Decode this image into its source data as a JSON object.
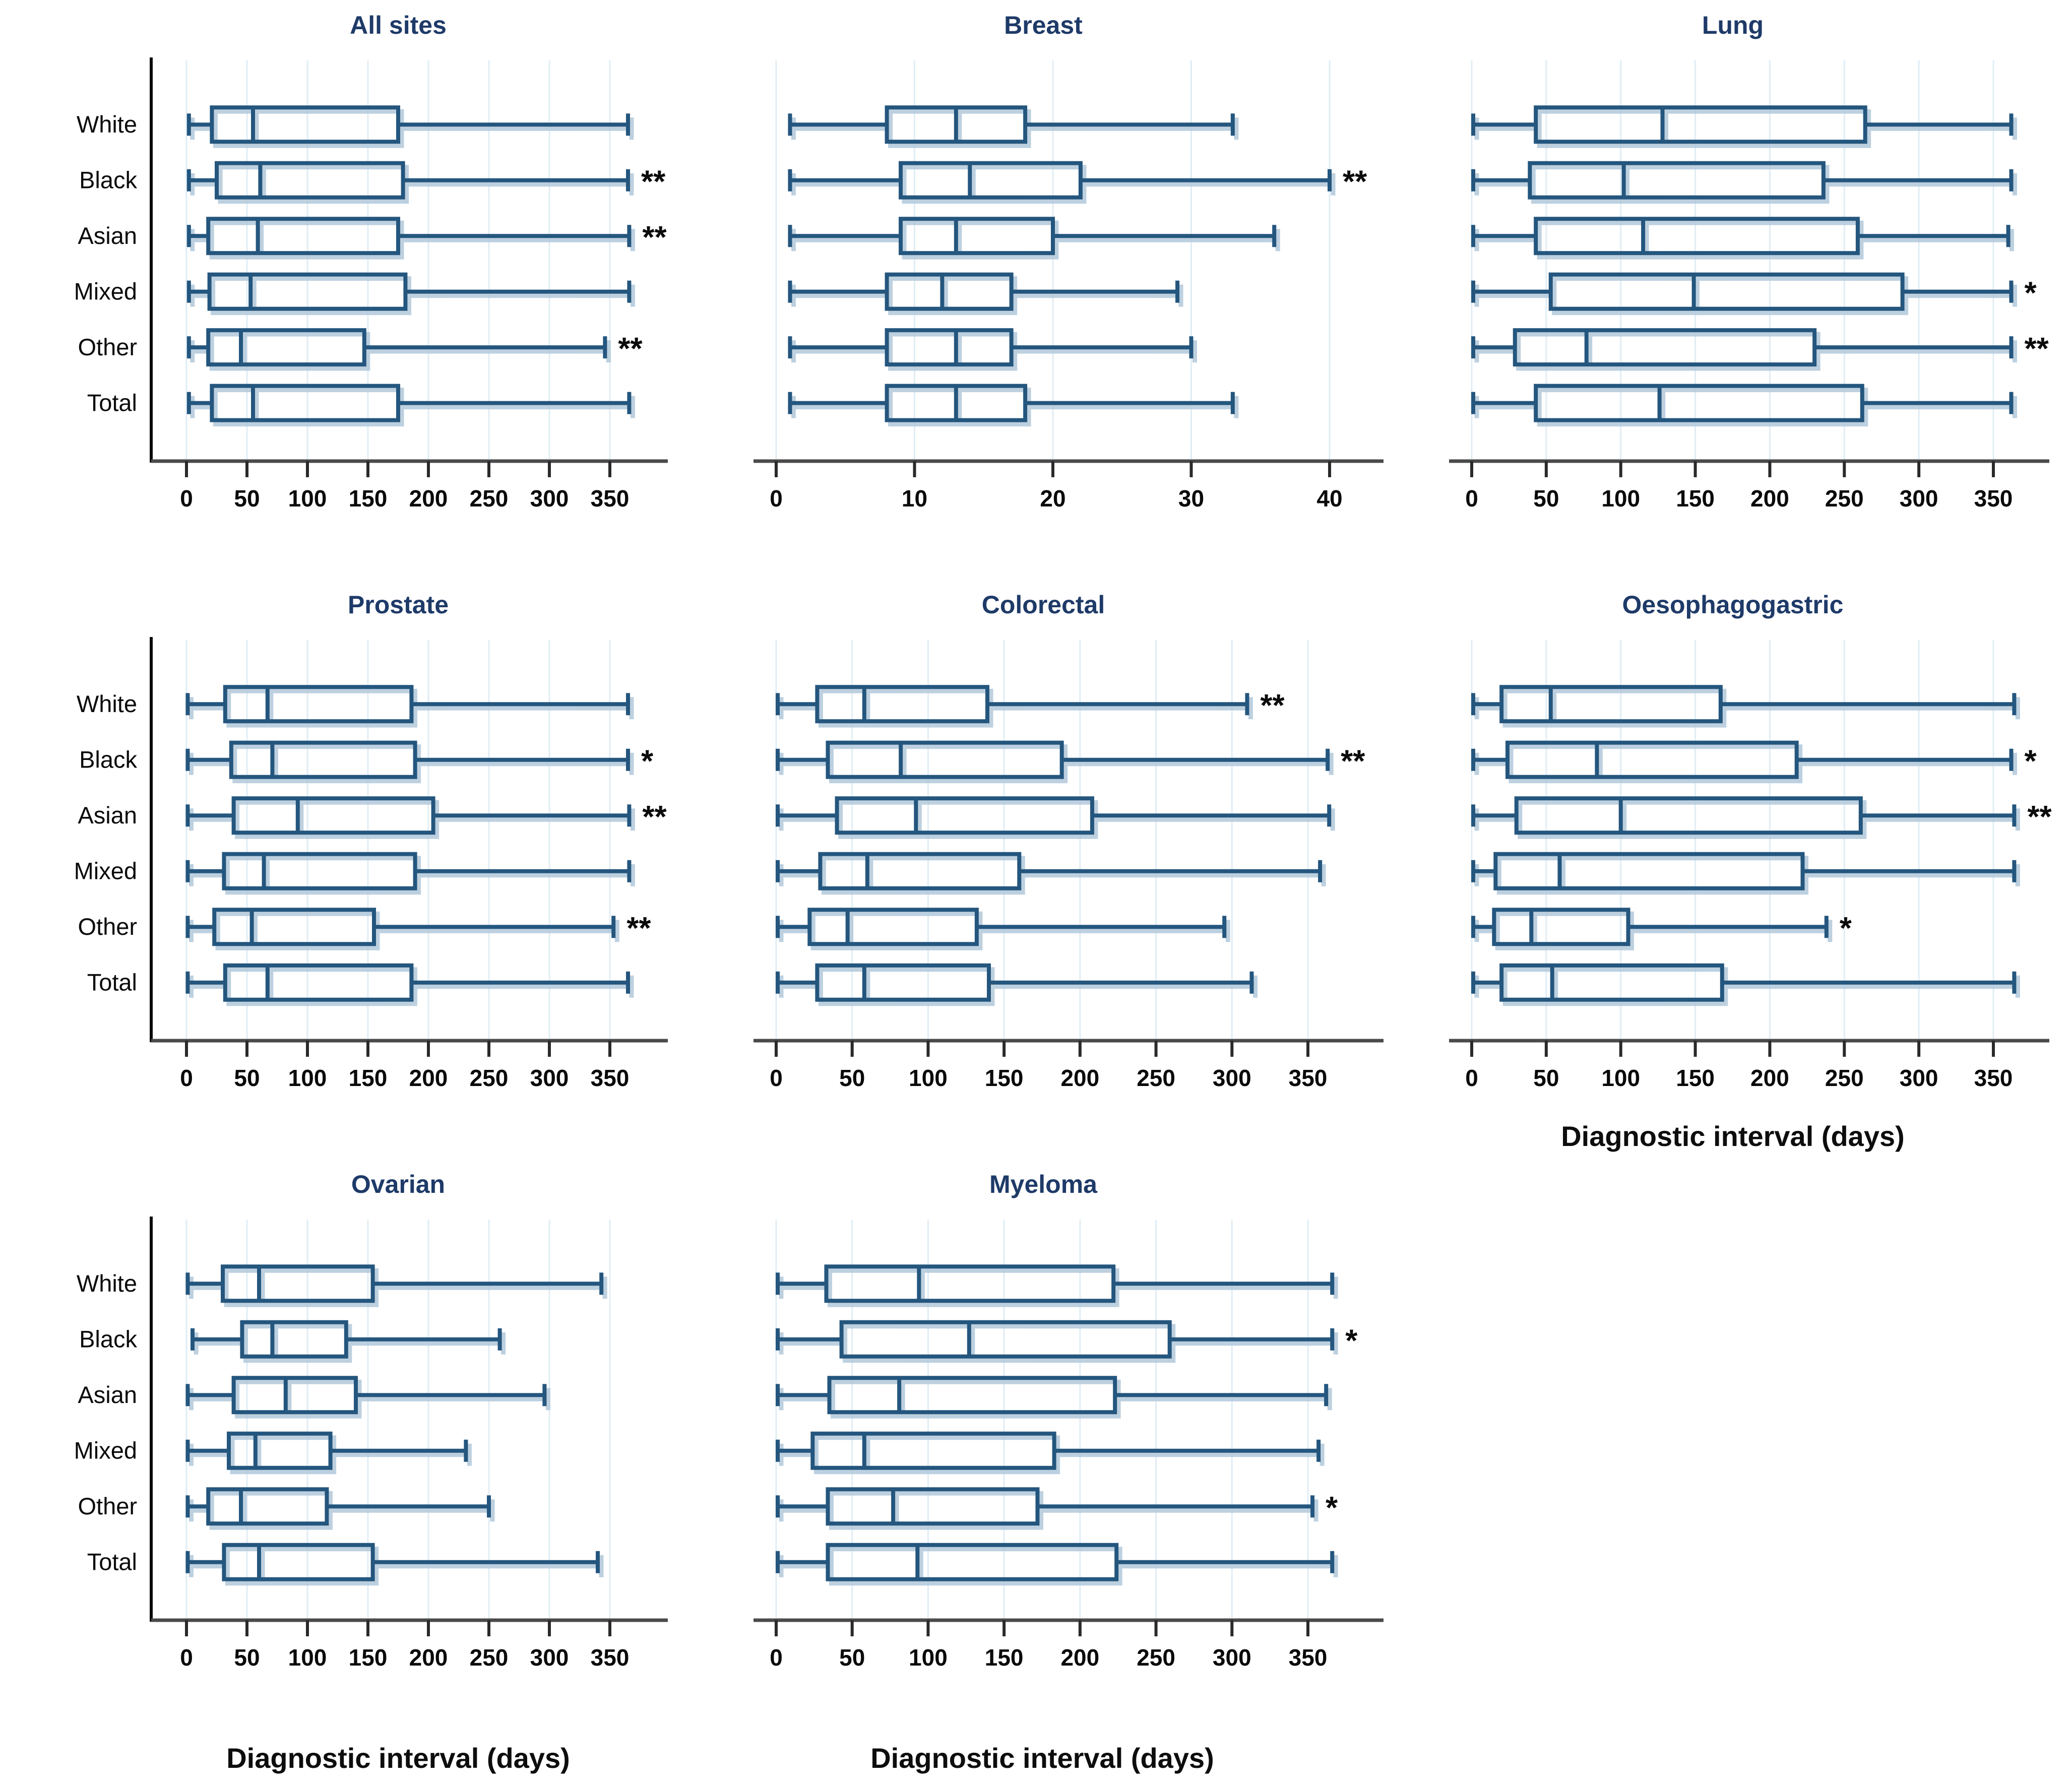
{
  "figure": {
    "xlabel": "Diagnostic interval (days)"
  },
  "categories": [
    "White",
    "Black",
    "Asian",
    "Mixed",
    "Other",
    "Total"
  ],
  "colors": {
    "box_stroke": "#24567e",
    "box_shadow": "#b2c8da",
    "grid": "#e0edf5",
    "axis": "#4a4a4a",
    "tick": "#2a2a2a",
    "spine": "#0a0a0a",
    "text": "#0a0a0a",
    "title": "#1e3a68",
    "sig": "#0b0b0b",
    "background": "#ffffff"
  },
  "chart_data": [
    {
      "type": "box",
      "orientation": "horizontal",
      "title": "All sites",
      "col": 1,
      "show_category_labels": true,
      "show_x_axis_label": false,
      "grid": true,
      "xlim": [
        0,
        375
      ],
      "x_ticks": [
        0,
        50,
        100,
        150,
        200,
        250,
        300,
        350
      ],
      "rows": [
        {
          "category": "White",
          "min": 2,
          "q1": 21,
          "median": 55,
          "q3": 175,
          "max": 365,
          "sig": ""
        },
        {
          "category": "Black",
          "min": 2,
          "q1": 25,
          "median": 61,
          "q3": 179,
          "max": 365,
          "sig": "**"
        },
        {
          "category": "Asian",
          "min": 2,
          "q1": 18,
          "median": 59,
          "q3": 175,
          "max": 366,
          "sig": "**"
        },
        {
          "category": "Mixed",
          "min": 2,
          "q1": 19,
          "median": 53,
          "q3": 181,
          "max": 366,
          "sig": ""
        },
        {
          "category": "Other",
          "min": 2,
          "q1": 18,
          "median": 45,
          "q3": 147,
          "max": 346,
          "sig": "**"
        },
        {
          "category": "Total",
          "min": 2,
          "q1": 21,
          "median": 55,
          "q3": 175,
          "max": 366,
          "sig": ""
        }
      ]
    },
    {
      "type": "box",
      "orientation": "horizontal",
      "title": "Breast",
      "col": 2,
      "show_category_labels": false,
      "show_x_axis_label": false,
      "grid": true,
      "xlim": [
        0,
        42
      ],
      "x_ticks": [
        0,
        10,
        20,
        30,
        40
      ],
      "rows": [
        {
          "category": "White",
          "min": 1,
          "q1": 8,
          "median": 13,
          "q3": 18,
          "max": 33,
          "sig": ""
        },
        {
          "category": "Black",
          "min": 1,
          "q1": 9,
          "median": 14,
          "q3": 22,
          "max": 40,
          "sig": "**"
        },
        {
          "category": "Asian",
          "min": 1,
          "q1": 9,
          "median": 13,
          "q3": 20,
          "max": 36,
          "sig": ""
        },
        {
          "category": "Mixed",
          "min": 1,
          "q1": 8,
          "median": 12,
          "q3": 17,
          "max": 29,
          "sig": ""
        },
        {
          "category": "Other",
          "min": 1,
          "q1": 8,
          "median": 13,
          "q3": 17,
          "max": 30,
          "sig": ""
        },
        {
          "category": "Total",
          "min": 1,
          "q1": 8,
          "median": 13,
          "q3": 18,
          "max": 33,
          "sig": ""
        }
      ]
    },
    {
      "type": "box",
      "orientation": "horizontal",
      "title": "Lung",
      "col": 3,
      "show_category_labels": false,
      "show_x_axis_label": false,
      "grid": true,
      "xlim": [
        0,
        375
      ],
      "x_ticks": [
        0,
        50,
        100,
        150,
        200,
        250,
        300,
        350
      ],
      "rows": [
        {
          "category": "White",
          "min": 1,
          "q1": 43,
          "median": 128,
          "q3": 264,
          "max": 362,
          "sig": ""
        },
        {
          "category": "Black",
          "min": 1,
          "q1": 39,
          "median": 102,
          "q3": 236,
          "max": 362,
          "sig": ""
        },
        {
          "category": "Asian",
          "min": 1,
          "q1": 43,
          "median": 115,
          "q3": 259,
          "max": 360,
          "sig": ""
        },
        {
          "category": "Mixed",
          "min": 1,
          "q1": 53,
          "median": 149,
          "q3": 289,
          "max": 362,
          "sig": "*"
        },
        {
          "category": "Other",
          "min": 1,
          "q1": 29,
          "median": 77,
          "q3": 230,
          "max": 362,
          "sig": "**"
        },
        {
          "category": "Total",
          "min": 1,
          "q1": 43,
          "median": 126,
          "q3": 262,
          "max": 362,
          "sig": ""
        }
      ]
    },
    {
      "type": "box",
      "orientation": "horizontal",
      "title": "Prostate",
      "col": 1,
      "show_category_labels": true,
      "show_x_axis_label": false,
      "grid": true,
      "xlim": [
        0,
        375
      ],
      "x_ticks": [
        0,
        50,
        100,
        150,
        200,
        250,
        300,
        350
      ],
      "rows": [
        {
          "category": "White",
          "min": 1,
          "q1": 32,
          "median": 67,
          "q3": 186,
          "max": 365,
          "sig": ""
        },
        {
          "category": "Black",
          "min": 1,
          "q1": 37,
          "median": 71,
          "q3": 189,
          "max": 365,
          "sig": "*"
        },
        {
          "category": "Asian",
          "min": 1,
          "q1": 39,
          "median": 92,
          "q3": 204,
          "max": 366,
          "sig": "**"
        },
        {
          "category": "Mixed",
          "min": 1,
          "q1": 31,
          "median": 64,
          "q3": 189,
          "max": 366,
          "sig": ""
        },
        {
          "category": "Other",
          "min": 1,
          "q1": 23,
          "median": 54,
          "q3": 155,
          "max": 353,
          "sig": "**"
        },
        {
          "category": "Total",
          "min": 1,
          "q1": 32,
          "median": 67,
          "q3": 186,
          "max": 365,
          "sig": ""
        }
      ]
    },
    {
      "type": "box",
      "orientation": "horizontal",
      "title": "Colorectal",
      "col": 2,
      "show_category_labels": false,
      "show_x_axis_label": false,
      "grid": true,
      "xlim": [
        0,
        375
      ],
      "x_ticks": [
        0,
        50,
        100,
        150,
        200,
        250,
        300,
        350
      ],
      "rows": [
        {
          "category": "White",
          "min": 1,
          "q1": 27,
          "median": 58,
          "q3": 139,
          "max": 310,
          "sig": "**"
        },
        {
          "category": "Black",
          "min": 1,
          "q1": 34,
          "median": 82,
          "q3": 188,
          "max": 363,
          "sig": "**"
        },
        {
          "category": "Asian",
          "min": 1,
          "q1": 40,
          "median": 92,
          "q3": 208,
          "max": 364,
          "sig": ""
        },
        {
          "category": "Mixed",
          "min": 1,
          "q1": 29,
          "median": 60,
          "q3": 160,
          "max": 358,
          "sig": ""
        },
        {
          "category": "Other",
          "min": 1,
          "q1": 22,
          "median": 47,
          "q3": 132,
          "max": 295,
          "sig": ""
        },
        {
          "category": "Total",
          "min": 1,
          "q1": 27,
          "median": 58,
          "q3": 140,
          "max": 313,
          "sig": ""
        }
      ]
    },
    {
      "type": "box",
      "orientation": "horizontal",
      "title": "Oesophagogastric",
      "col": 3,
      "show_category_labels": false,
      "show_x_axis_label": true,
      "grid": true,
      "xlim": [
        0,
        375
      ],
      "x_ticks": [
        0,
        50,
        100,
        150,
        200,
        250,
        300,
        350
      ],
      "rows": [
        {
          "category": "White",
          "min": 1,
          "q1": 20,
          "median": 53,
          "q3": 167,
          "max": 364,
          "sig": ""
        },
        {
          "category": "Black",
          "min": 1,
          "q1": 24,
          "median": 84,
          "q3": 218,
          "max": 362,
          "sig": "*"
        },
        {
          "category": "Asian",
          "min": 1,
          "q1": 30,
          "median": 100,
          "q3": 261,
          "max": 364,
          "sig": "**"
        },
        {
          "category": "Mixed",
          "min": 1,
          "q1": 16,
          "median": 59,
          "q3": 222,
          "max": 364,
          "sig": ""
        },
        {
          "category": "Other",
          "min": 1,
          "q1": 15,
          "median": 40,
          "q3": 105,
          "max": 238,
          "sig": "*"
        },
        {
          "category": "Total",
          "min": 1,
          "q1": 20,
          "median": 54,
          "q3": 168,
          "max": 364,
          "sig": ""
        }
      ]
    },
    {
      "type": "box",
      "orientation": "horizontal",
      "title": "Ovarian",
      "col": 1,
      "show_category_labels": true,
      "show_x_axis_label": true,
      "grid": true,
      "xlim": [
        0,
        375
      ],
      "x_ticks": [
        0,
        50,
        100,
        150,
        200,
        250,
        300,
        350
      ],
      "rows": [
        {
          "category": "White",
          "min": 1,
          "q1": 30,
          "median": 60,
          "q3": 154,
          "max": 343,
          "sig": ""
        },
        {
          "category": "Black",
          "min": 5,
          "q1": 46,
          "median": 71,
          "q3": 132,
          "max": 259,
          "sig": ""
        },
        {
          "category": "Asian",
          "min": 1,
          "q1": 39,
          "median": 82,
          "q3": 140,
          "max": 296,
          "sig": ""
        },
        {
          "category": "Mixed",
          "min": 1,
          "q1": 35,
          "median": 57,
          "q3": 119,
          "max": 231,
          "sig": ""
        },
        {
          "category": "Other",
          "min": 1,
          "q1": 18,
          "median": 45,
          "q3": 116,
          "max": 250,
          "sig": ""
        },
        {
          "category": "Total",
          "min": 1,
          "q1": 31,
          "median": 60,
          "q3": 154,
          "max": 340,
          "sig": ""
        }
      ]
    },
    {
      "type": "box",
      "orientation": "horizontal",
      "title": "Myeloma",
      "col": 2,
      "show_category_labels": false,
      "show_x_axis_label": true,
      "grid": true,
      "xlim": [
        0,
        375
      ],
      "x_ticks": [
        0,
        50,
        100,
        150,
        200,
        250,
        300,
        350
      ],
      "rows": [
        {
          "category": "White",
          "min": 1,
          "q1": 33,
          "median": 94,
          "q3": 222,
          "max": 366,
          "sig": ""
        },
        {
          "category": "Black",
          "min": 1,
          "q1": 43,
          "median": 127,
          "q3": 259,
          "max": 366,
          "sig": "*"
        },
        {
          "category": "Asian",
          "min": 1,
          "q1": 35,
          "median": 81,
          "q3": 223,
          "max": 362,
          "sig": ""
        },
        {
          "category": "Mixed",
          "min": 1,
          "q1": 24,
          "median": 58,
          "q3": 183,
          "max": 357,
          "sig": ""
        },
        {
          "category": "Other",
          "min": 1,
          "q1": 34,
          "median": 77,
          "q3": 172,
          "max": 353,
          "sig": "*"
        },
        {
          "category": "Total",
          "min": 1,
          "q1": 34,
          "median": 93,
          "q3": 224,
          "max": 366,
          "sig": ""
        }
      ]
    }
  ]
}
